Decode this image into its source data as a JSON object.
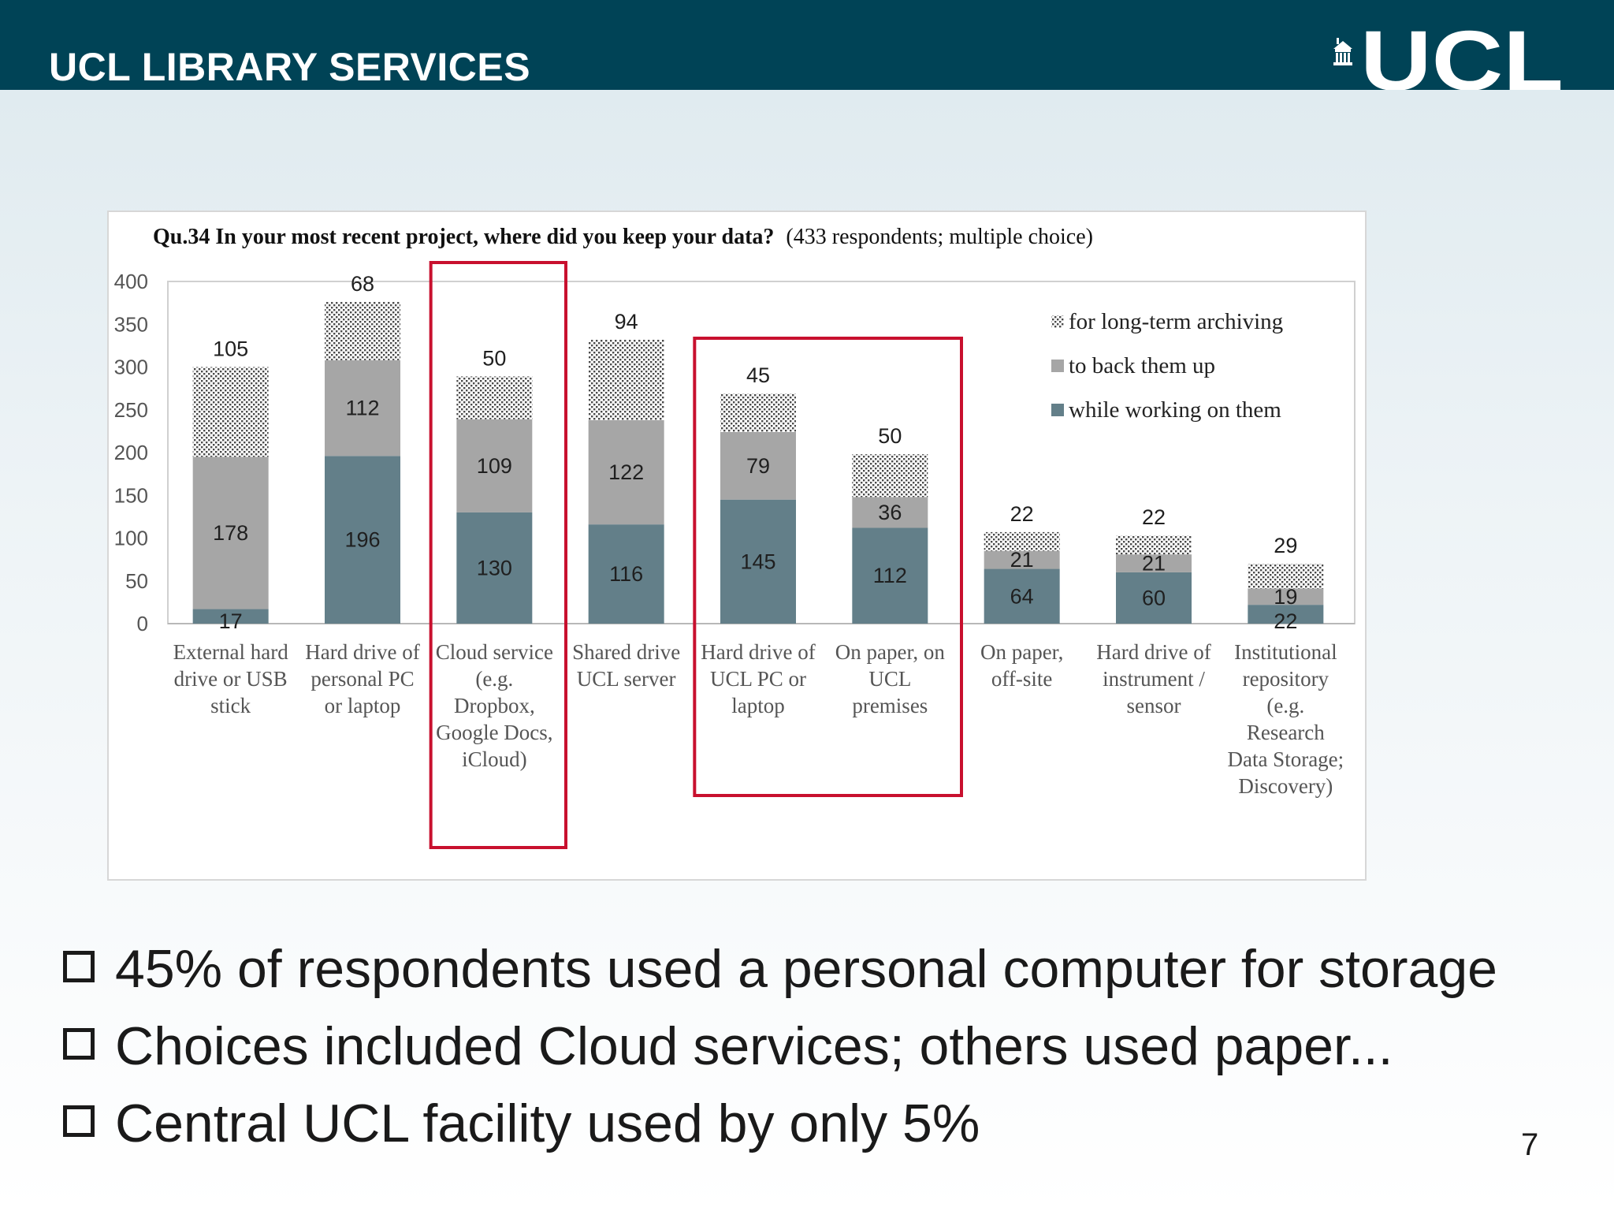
{
  "header": {
    "title": "UCL LIBRARY SERVICES",
    "logo_text": "UCL"
  },
  "chart_data": {
    "type": "bar",
    "stacked": true,
    "title": "Qu.34 In your most recent project, where did you keep your data?",
    "subtitle": "(433 respondents; multiple choice)",
    "xlabel": "",
    "ylabel": "",
    "ylim": [
      0,
      400
    ],
    "yticks": [
      0,
      50,
      100,
      150,
      200,
      250,
      300,
      350,
      400
    ],
    "categories": [
      [
        "External hard",
        "drive or USB",
        "stick"
      ],
      [
        "Hard drive of",
        "personal PC",
        "or laptop"
      ],
      [
        "Cloud service",
        "(e.g.",
        "Dropbox,",
        "Google Docs,",
        "iCloud)"
      ],
      [
        "Shared drive",
        "UCL server"
      ],
      [
        "Hard drive of",
        "UCL PC or",
        "laptop"
      ],
      [
        "On paper, on",
        "UCL",
        "premises"
      ],
      [
        "On paper,",
        "off-site"
      ],
      [
        "Hard drive of",
        "instrument /",
        "sensor"
      ],
      [
        "Institutional",
        "repository",
        "(e.g.",
        "Research",
        "Data Storage;",
        "Discovery)"
      ]
    ],
    "series": [
      {
        "name": "while working on them",
        "color": "#637f89",
        "values": [
          17,
          196,
          130,
          116,
          145,
          112,
          64,
          60,
          22
        ]
      },
      {
        "name": "to back them up",
        "color": "#a6a6a6",
        "values": [
          178,
          112,
          109,
          122,
          79,
          36,
          21,
          21,
          19
        ]
      },
      {
        "name": "for long-term archiving",
        "color": "#505050",
        "pattern": "dots",
        "values": [
          105,
          68,
          50,
          94,
          45,
          50,
          22,
          22,
          29
        ]
      }
    ],
    "legend_position": "top-right",
    "highlight_groups": [
      [
        2,
        2
      ],
      [
        4,
        5
      ]
    ],
    "highlight_color": "#c8102e",
    "grid": false
  },
  "bullets": [
    "45% of respondents used a personal computer for storage",
    "Choices included Cloud services; others used paper...",
    "Central UCL facility used by only 5%"
  ],
  "page_number": "7"
}
